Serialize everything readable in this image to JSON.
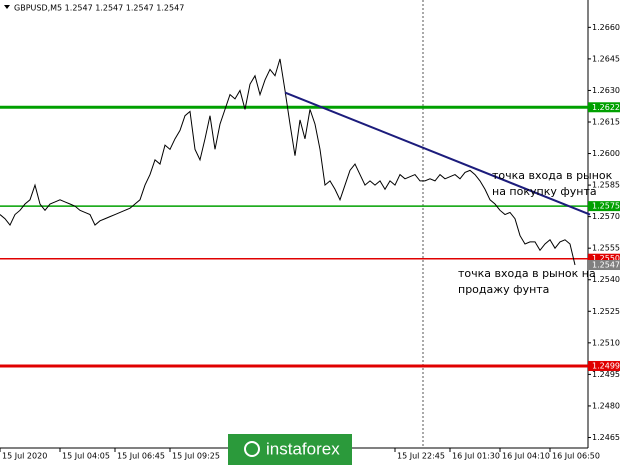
{
  "chart_data": {
    "type": "line",
    "title": "GBPUSD,M5  1.2547 1.2547 1.2547 1.2547",
    "color": "#000000",
    "values": [
      1.2571,
      1.2569,
      1.2566,
      1.2571,
      1.2573,
      1.2576,
      1.2578,
      1.2585,
      1.2576,
      1.2573,
      1.2576,
      1.2577,
      1.2578,
      1.2577,
      1.2576,
      1.2575,
      1.2573,
      1.2572,
      1.2571,
      1.2566,
      1.2568,
      1.2569,
      1.257,
      1.2571,
      1.2572,
      1.2573,
      1.2574,
      1.2576,
      1.2578,
      1.2585,
      1.259,
      1.2597,
      1.2595,
      1.2604,
      1.2602,
      1.2607,
      1.2611,
      1.2618,
      1.262,
      1.2602,
      1.2597,
      1.2607,
      1.2618,
      1.2602,
      1.2614,
      1.2621,
      1.2628,
      1.2626,
      1.263,
      1.2621,
      1.2633,
      1.2637,
      1.2628,
      1.2635,
      1.264,
      1.2637,
      1.2645,
      1.263,
      1.2614,
      1.2599,
      1.2616,
      1.2607,
      1.2621,
      1.2614,
      1.2602,
      1.2585,
      1.2587,
      1.2583,
      1.2578,
      1.2585,
      1.2592,
      1.2595,
      1.259,
      1.2585,
      1.2587,
      1.2585,
      1.2587,
      1.2583,
      1.2587,
      1.2585,
      1.259,
      1.2588,
      1.2589,
      1.259,
      1.2587,
      1.2587,
      1.2588,
      1.2587,
      1.259,
      1.2588,
      1.2589,
      1.259,
      1.2588,
      1.2591,
      1.2592,
      1.259,
      1.2587,
      1.2583,
      1.2578,
      1.2576,
      1.2573,
      1.2571,
      1.2572,
      1.2569,
      1.2561,
      1.2557,
      1.2558,
      1.2558,
      1.2554,
      1.2557,
      1.2559,
      1.2555,
      1.2558,
      1.2559,
      1.2557,
      1.2547
    ],
    "ylim": [
      1.246,
      1.2673
    ],
    "yticks": [
      {
        "value": 1.266,
        "label": "1.2660"
      },
      {
        "value": 1.2645,
        "label": "1.2645"
      },
      {
        "value": 1.263,
        "label": "1.2630"
      },
      {
        "value": 1.2615,
        "label": "1.2615"
      },
      {
        "value": 1.26,
        "label": "1.2600"
      },
      {
        "value": 1.2585,
        "label": "1.2585"
      },
      {
        "value": 1.257,
        "label": "1.2570"
      },
      {
        "value": 1.2555,
        "label": "1.2555"
      },
      {
        "value": 1.254,
        "label": "1.2540"
      },
      {
        "value": 1.2525,
        "label": "1.2525"
      },
      {
        "value": 1.251,
        "label": "1.2510"
      },
      {
        "value": 1.2495,
        "label": "1.2495"
      },
      {
        "value": 1.248,
        "label": "1.2480"
      },
      {
        "value": 1.2465,
        "label": "1.2465"
      }
    ],
    "xticks": [
      {
        "value": 0,
        "label": "15 Jul 2020"
      },
      {
        "value": 12,
        "label": "15 Jul 04:05"
      },
      {
        "value": 23,
        "label": "15 Jul 06:45"
      },
      {
        "value": 34,
        "label": "15 Jul 09:25"
      },
      {
        "value": 79,
        "label": "15 Jul 22:45"
      },
      {
        "value": 90,
        "label": "16 Jul 01:30"
      },
      {
        "value": 100,
        "label": "16 Jul 04:10"
      },
      {
        "value": 110,
        "label": "16 Jul 06:50"
      }
    ],
    "levels": [
      {
        "value": 1.2622,
        "label": "1.2622",
        "color": "#00a000",
        "width": 3
      },
      {
        "value": 1.2575,
        "label": "1.2575",
        "color": "#00a000",
        "width": 1.5
      },
      {
        "value": 1.255,
        "label": "1.2550",
        "color": "#e00000",
        "width": 1.5
      },
      {
        "value": 1.2499,
        "label": "1.2499",
        "color": "#e00000",
        "width": 3
      }
    ],
    "last_price": {
      "value": 1.2547,
      "label": "1.2547",
      "color": "#808080"
    },
    "trendline": {
      "color": "#1c1c7c",
      "x": [
        57,
        118
      ],
      "values": [
        1.2629,
        1.2571
      ]
    },
    "annotations": [
      {
        "lines": [
          "точка входа в рынок",
          "на покупку фунта"
        ]
      },
      {
        "lines": [
          "точка входа в рынок на",
          "продажу фунта"
        ]
      }
    ],
    "watermark": "instaforex"
  }
}
